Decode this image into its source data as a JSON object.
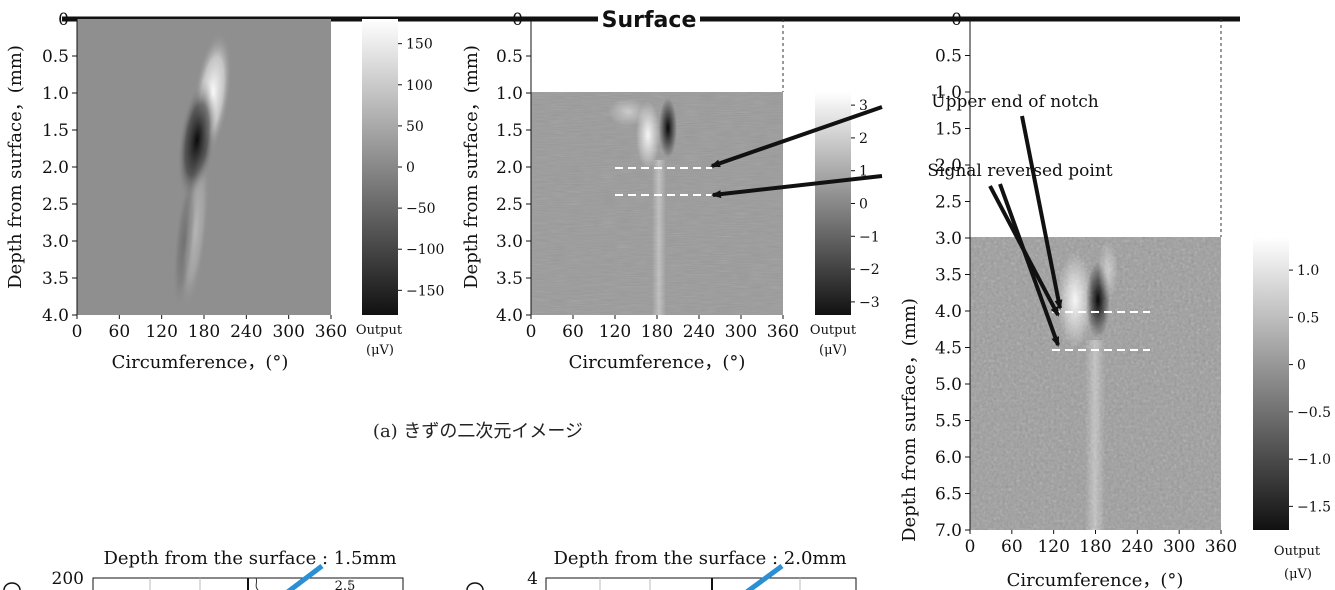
{
  "surface_label": "Surface",
  "caption": "(a) きずの二次元イメージ",
  "annotations": {
    "upper_end": "Upper end of notch",
    "signal_reversed": "Signal reversed point"
  },
  "chart_data": [
    {
      "type": "heatmap",
      "xlabel": "Circumference，(°)",
      "ylabel": "Depth from surface，(mm)",
      "x_ticks": [
        "0",
        "60",
        "120",
        "180",
        "240",
        "300",
        "360"
      ],
      "y_ticks": [
        "0",
        "0.5",
        "1.0",
        "1.5",
        "2.0",
        "2.5",
        "3.0",
        "3.5",
        "4.0"
      ],
      "xlim": [
        0,
        360
      ],
      "ylim": [
        0,
        4.0
      ],
      "data_depth_range": [
        0,
        4.0
      ],
      "colorbar": {
        "label": "Output",
        "unit": "(μV)",
        "ticks": [
          "150",
          "100",
          "50",
          "0",
          "−50",
          "−100",
          "−150"
        ],
        "range": [
          -180,
          180
        ]
      }
    },
    {
      "type": "heatmap",
      "xlabel": "Circumference，(°)",
      "ylabel": "Depth from surface，(mm)",
      "x_ticks": [
        "0",
        "60",
        "120",
        "180",
        "240",
        "300",
        "360"
      ],
      "y_ticks": [
        "0",
        "0.5",
        "1.0",
        "1.5",
        "2.0",
        "2.5",
        "3.0",
        "3.5",
        "4.0"
      ],
      "xlim": [
        0,
        360
      ],
      "ylim": [
        0,
        4.0
      ],
      "data_depth_range": [
        1.0,
        4.0
      ],
      "marked_depths": [
        2.05,
        2.45
      ],
      "colorbar": {
        "label": "Output",
        "unit": "(μV)",
        "ticks": [
          "3",
          "2",
          "1",
          "0",
          "−1",
          "−2",
          "−3"
        ],
        "range": [
          -3.4,
          3.4
        ]
      }
    },
    {
      "type": "heatmap",
      "xlabel": "Circumference，(°)",
      "ylabel": "Depth from surface，(mm)",
      "x_ticks": [
        "0",
        "60",
        "120",
        "180",
        "240",
        "300",
        "360"
      ],
      "y_ticks": [
        "0",
        "0.5",
        "1.0",
        "1.5",
        "2.0",
        "2.5",
        "3.0",
        "3.5",
        "4.0",
        "4.5",
        "5.0",
        "5.5",
        "6.0",
        "6.5",
        "7.0"
      ],
      "xlim": [
        0,
        360
      ],
      "ylim": [
        0,
        7.0
      ],
      "data_depth_range": [
        3.0,
        7.0
      ],
      "marked_depths": [
        4.0,
        4.55
      ],
      "colorbar": {
        "label": "Output",
        "unit": "(μV)",
        "ticks": [
          "1.0",
          "0.5",
          "0",
          "−0.5",
          "−1.0",
          "−1.5"
        ],
        "range": [
          -1.75,
          1.35
        ]
      }
    }
  ],
  "line_plots": [
    {
      "title": "Depth from the surface : 1.5mm",
      "y_top_tick": "200",
      "legend_text": "2.5"
    },
    {
      "title": "Depth from the surface : 2.0mm",
      "y_top_tick": "4"
    }
  ]
}
